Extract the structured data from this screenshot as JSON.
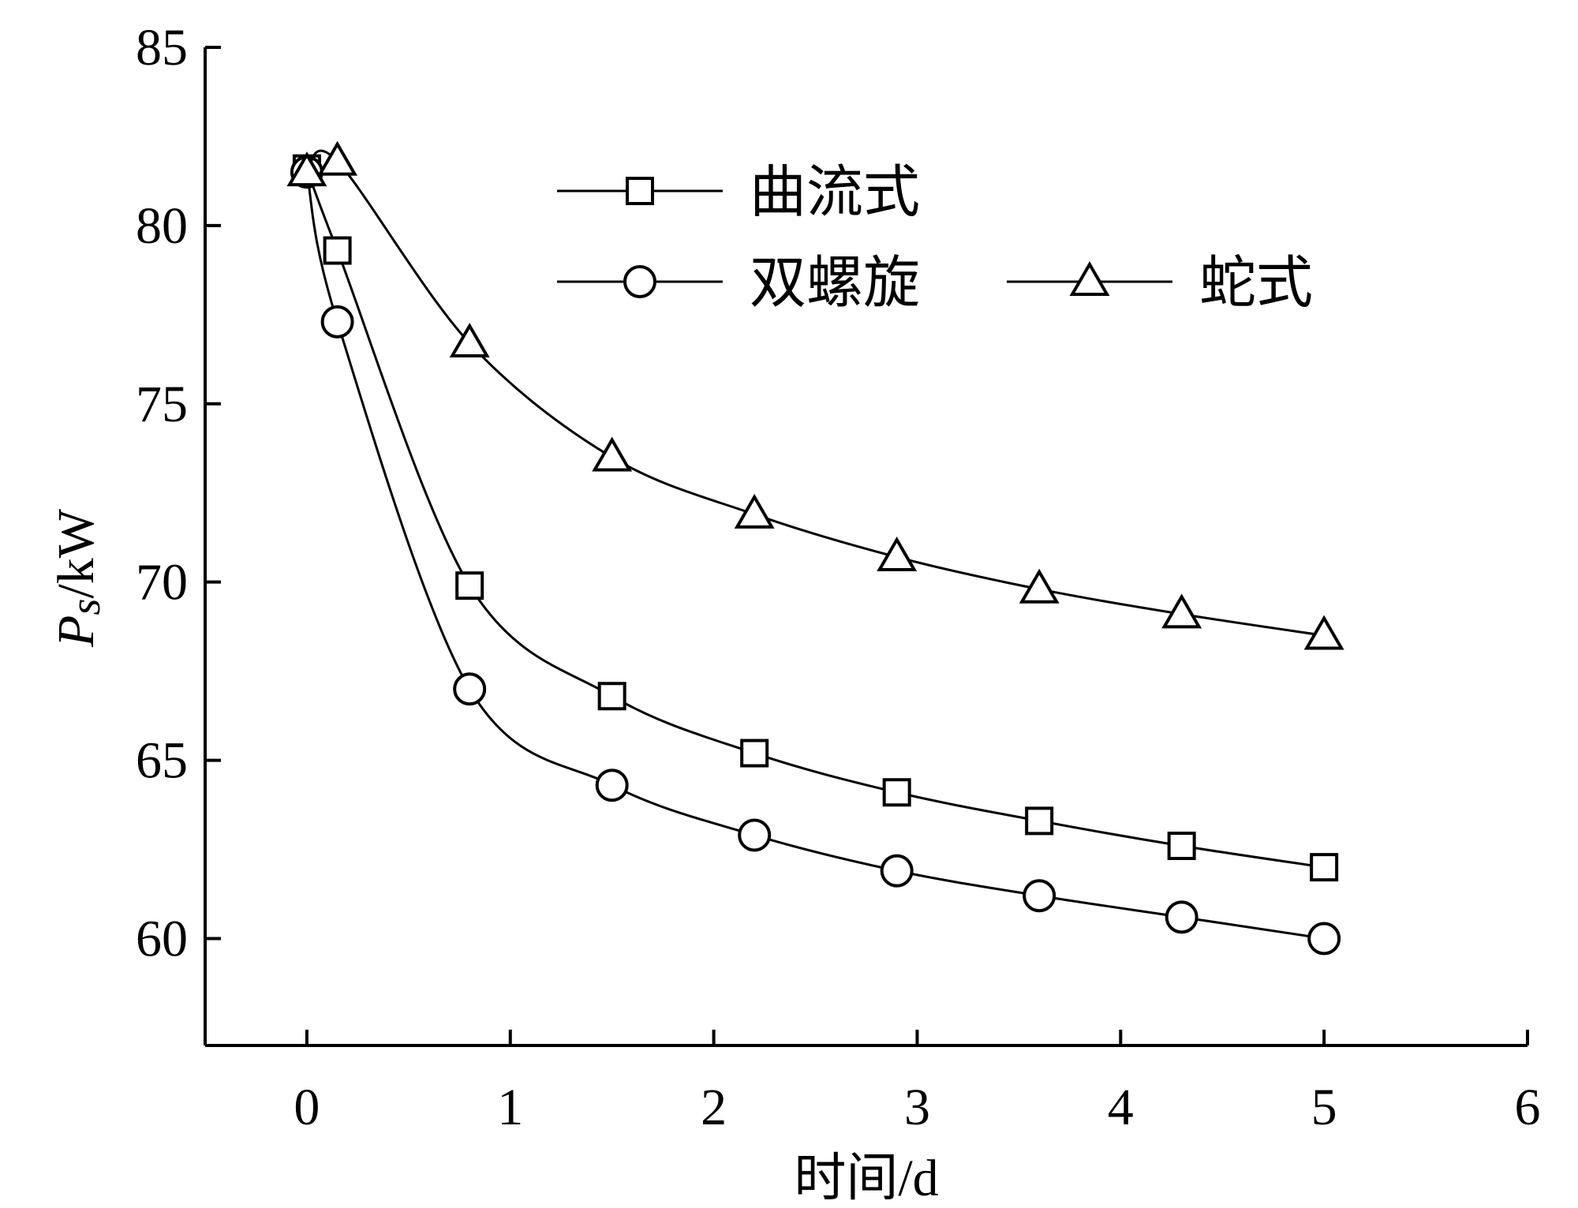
{
  "chart_data": {
    "type": "line",
    "xlabel": "时间/d",
    "ylabel_main": "P",
    "ylabel_sub": "s",
    "ylabel_unit": "/kW",
    "xlim": [
      -0.5,
      6
    ],
    "ylim": [
      57,
      85
    ],
    "xticks": [
      0,
      1,
      2,
      3,
      4,
      5,
      6
    ],
    "yticks": [
      60,
      65,
      70,
      75,
      80,
      85
    ],
    "grid": false,
    "legend_position": "top-right",
    "series": [
      {
        "name": "曲流式",
        "marker": "square",
        "x": [
          0,
          0.15,
          0.8,
          1.5,
          2.2,
          2.9,
          3.6,
          4.3,
          5.0
        ],
        "y": [
          81.6,
          79.3,
          69.9,
          66.8,
          65.2,
          64.1,
          63.3,
          62.6,
          62.0
        ]
      },
      {
        "name": "双螺旋",
        "marker": "circle",
        "x": [
          0,
          0.15,
          0.8,
          1.5,
          2.2,
          2.9,
          3.6,
          4.3,
          5.0
        ],
        "y": [
          81.5,
          77.3,
          67.0,
          64.3,
          62.9,
          61.9,
          61.2,
          60.6,
          60.0
        ]
      },
      {
        "name": "蛇式",
        "marker": "triangle",
        "x": [
          0,
          0.15,
          0.8,
          1.5,
          2.2,
          2.9,
          3.6,
          4.3,
          5.0
        ],
        "y": [
          81.5,
          81.8,
          76.7,
          73.5,
          71.9,
          70.7,
          69.8,
          69.1,
          68.5
        ]
      }
    ]
  }
}
